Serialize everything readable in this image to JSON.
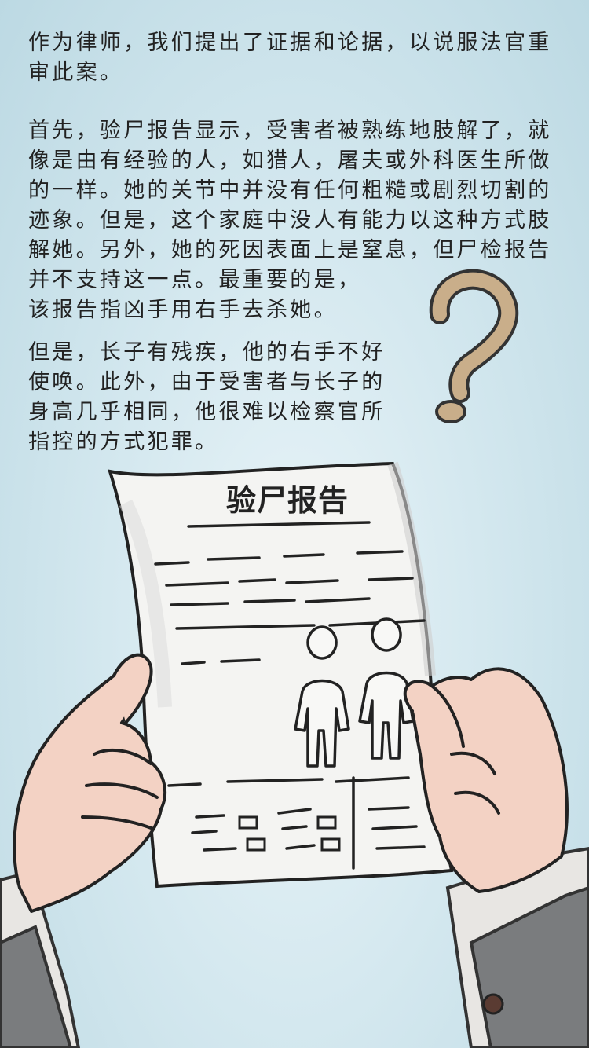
{
  "story": {
    "paragraph1": "作为律师，我们提出了证据和论据，以说服法官重\n审此案。",
    "paragraph2": "首先，验尸报告显示，受害者被熟练地肢解了，就\n像是由有经验的人，如猎人，屠夫或外科医生所做\n的一样。她的关节中并没有任何粗糙或剧烈切割的\n迹象。但是，这个家庭中没人有能力以这种方式肢\n解她。另外，她的死因表面上是窒息，但尸检报告\n并不支持这一点。最重要的是，\n该报告指凶手用右手去杀她。",
    "paragraph3": "但是，长子有残疾，他的右手不好\n使唤。此外，由于受害者与长子的\n身高几乎相同，他很难以检察官所\n指控的方式犯罪。"
  },
  "illustration": {
    "report_title": "验尸报告",
    "question_mark": "?",
    "colors": {
      "background": "#d4e8ef",
      "paper": "#f4f4f2",
      "ink": "#222222",
      "skin": "#f3d2c4",
      "sleeve": "#7a7c7e",
      "question_mark": "#c9ae8a"
    }
  }
}
